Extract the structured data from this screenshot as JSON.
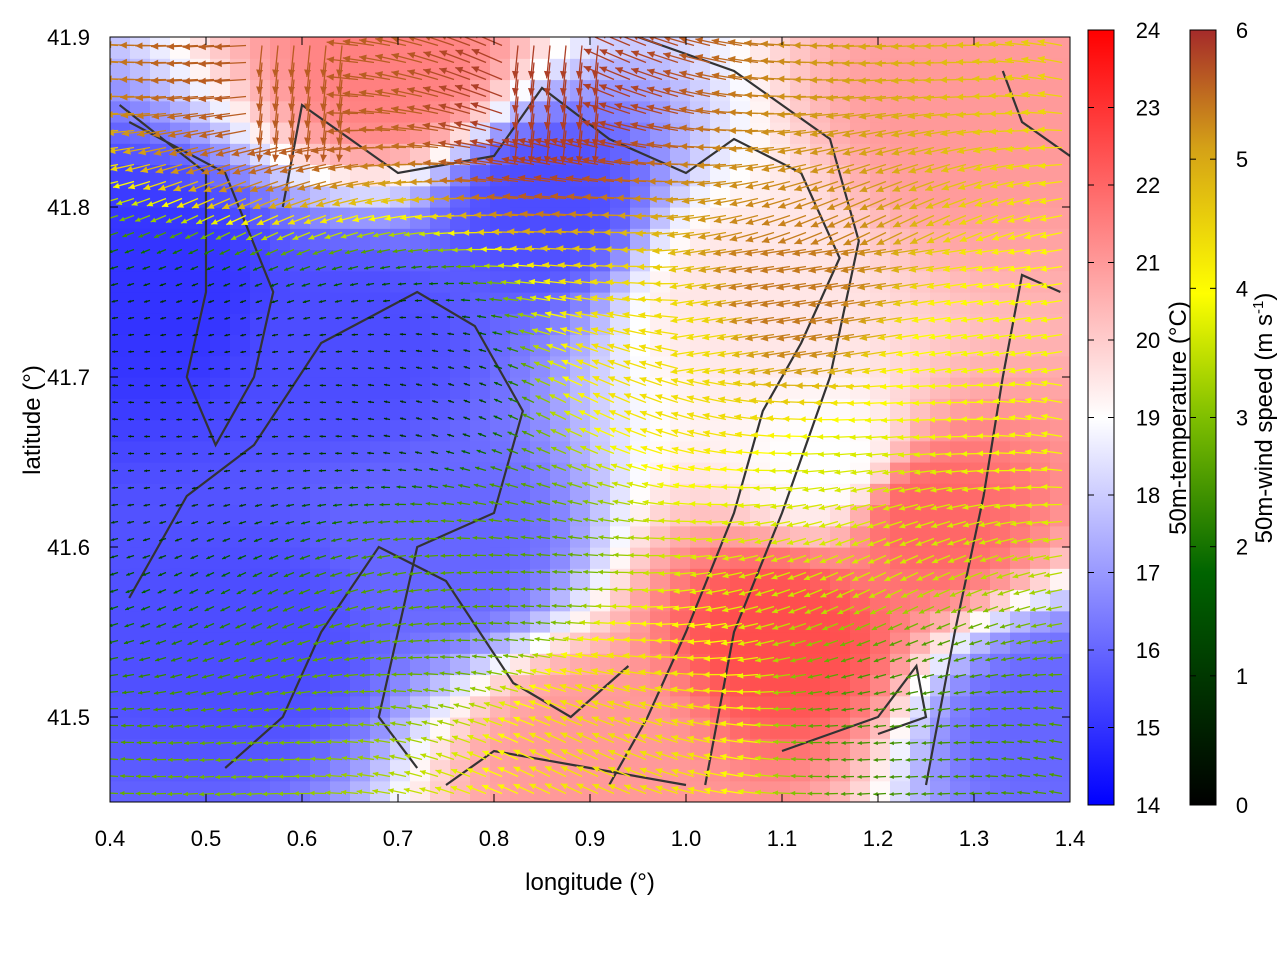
{
  "chart_data": {
    "type": "heatmap",
    "xlabel": "longitude (°)",
    "ylabel": "latitude (°)",
    "xlim": [
      0.4,
      1.4
    ],
    "ylim": [
      41.45,
      41.9
    ],
    "x_ticks": [
      "0.4",
      "0.5",
      "0.6",
      "0.7",
      "0.8",
      "0.9",
      "1.0",
      "1.1",
      "1.2",
      "1.3",
      "1.4"
    ],
    "y_ticks": [
      "41.5",
      "41.6",
      "41.7",
      "41.8",
      "41.9"
    ],
    "grid": false,
    "temperature_colorbar": {
      "label": "50m-temperature (°C)",
      "range": [
        14,
        24
      ],
      "ticks": [
        "14",
        "15",
        "16",
        "17",
        "18",
        "19",
        "20",
        "21",
        "22",
        "23",
        "24"
      ],
      "colors": [
        "#0000ff",
        "#ffffff",
        "#ff0000"
      ]
    },
    "wind_colorbar": {
      "label_main": "50m-wind speed (m s",
      "label_sup": "-1",
      "label_end": ")",
      "range": [
        0,
        6
      ],
      "ticks": [
        "0",
        "1",
        "2",
        "3",
        "4",
        "5",
        "6"
      ],
      "colors": [
        "#000000",
        "#006400",
        "#7fbf00",
        "#ffff00",
        "#d4a017",
        "#a52a2a"
      ]
    },
    "temperature_regions": [
      {
        "lon": 0.45,
        "lat": 41.75,
        "temp": 15.0
      },
      {
        "lon": 0.65,
        "lat": 41.72,
        "temp": 15.5
      },
      {
        "lon": 0.75,
        "lat": 41.6,
        "temp": 16.0
      },
      {
        "lon": 0.55,
        "lat": 41.55,
        "temp": 15.5
      },
      {
        "lon": 0.85,
        "lat": 41.8,
        "temp": 15.5
      },
      {
        "lon": 0.7,
        "lat": 41.88,
        "temp": 21.5
      },
      {
        "lon": 1.05,
        "lat": 41.75,
        "temp": 19.5
      },
      {
        "lon": 1.15,
        "lat": 41.65,
        "temp": 19.0
      },
      {
        "lon": 1.1,
        "lat": 41.55,
        "temp": 22.5
      },
      {
        "lon": 1.25,
        "lat": 41.62,
        "temp": 22.0
      },
      {
        "lon": 0.9,
        "lat": 41.48,
        "temp": 21.0
      },
      {
        "lon": 1.3,
        "lat": 41.85,
        "temp": 21.0
      },
      {
        "lon": 1.38,
        "lat": 41.5,
        "temp": 16.0
      }
    ],
    "wind_regions": [
      {
        "lon": 0.5,
        "lat": 41.7,
        "speed": 0.5
      },
      {
        "lon": 0.7,
        "lat": 41.7,
        "speed": 0.6
      },
      {
        "lon": 0.8,
        "lat": 41.58,
        "speed": 2.0
      },
      {
        "lon": 1.0,
        "lat": 41.72,
        "speed": 4.0
      },
      {
        "lon": 1.12,
        "lat": 41.75,
        "speed": 5.2
      },
      {
        "lon": 1.2,
        "lat": 41.62,
        "speed": 3.2
      },
      {
        "lon": 0.95,
        "lat": 41.5,
        "speed": 4.0
      },
      {
        "lon": 0.6,
        "lat": 41.87,
        "speed": 5.5
      },
      {
        "lon": 0.87,
        "lat": 41.86,
        "speed": 5.8
      },
      {
        "lon": 1.25,
        "lat": 41.5,
        "speed": 1.8
      },
      {
        "lon": 1.32,
        "lat": 41.7,
        "speed": 3.5
      }
    ],
    "contours": [
      [
        [
          0.41,
          41.86
        ],
        [
          0.5,
          41.82
        ],
        [
          0.5,
          41.75
        ],
        [
          0.48,
          41.7
        ],
        [
          0.51,
          41.66
        ],
        [
          0.55,
          41.7
        ],
        [
          0.57,
          41.75
        ],
        [
          0.52,
          41.82
        ],
        [
          0.42,
          41.85
        ]
      ],
      [
        [
          0.58,
          41.8
        ],
        [
          0.6,
          41.86
        ],
        [
          0.65,
          41.84
        ],
        [
          0.7,
          41.82
        ],
        [
          0.8,
          41.83
        ],
        [
          0.85,
          41.87
        ],
        [
          0.92,
          41.84
        ],
        [
          1.0,
          41.82
        ],
        [
          1.05,
          41.84
        ],
        [
          1.12,
          41.82
        ],
        [
          1.16,
          41.77
        ],
        [
          1.12,
          41.72
        ],
        [
          1.08,
          41.68
        ],
        [
          1.05,
          41.62
        ],
        [
          1.0,
          41.55
        ],
        [
          0.96,
          41.5
        ],
        [
          0.92,
          41.46
        ]
      ],
      [
        [
          0.42,
          41.57
        ],
        [
          0.48,
          41.63
        ],
        [
          0.55,
          41.66
        ],
        [
          0.62,
          41.72
        ],
        [
          0.72,
          41.75
        ],
        [
          0.78,
          41.73
        ],
        [
          0.83,
          41.68
        ],
        [
          0.8,
          41.62
        ],
        [
          0.72,
          41.6
        ],
        [
          0.7,
          41.55
        ],
        [
          0.68,
          41.5
        ],
        [
          0.72,
          41.47
        ]
      ],
      [
        [
          1.02,
          41.46
        ],
        [
          1.05,
          41.55
        ],
        [
          1.1,
          41.62
        ],
        [
          1.15,
          41.7
        ],
        [
          1.18,
          41.78
        ],
        [
          1.15,
          41.84
        ],
        [
          1.05,
          41.88
        ],
        [
          0.95,
          41.9
        ]
      ],
      [
        [
          1.25,
          41.46
        ],
        [
          1.28,
          41.55
        ],
        [
          1.31,
          41.63
        ],
        [
          1.33,
          41.7
        ],
        [
          1.35,
          41.76
        ],
        [
          1.39,
          41.75
        ]
      ],
      [
        [
          0.52,
          41.47
        ],
        [
          0.58,
          41.5
        ],
        [
          0.62,
          41.55
        ],
        [
          0.68,
          41.6
        ],
        [
          0.75,
          41.58
        ],
        [
          0.82,
          41.52
        ],
        [
          0.88,
          41.5
        ],
        [
          0.94,
          41.53
        ]
      ],
      [
        [
          1.1,
          41.48
        ],
        [
          1.2,
          41.5
        ],
        [
          1.24,
          41.53
        ],
        [
          1.25,
          41.5
        ],
        [
          1.2,
          41.49
        ]
      ],
      [
        [
          1.33,
          41.88
        ],
        [
          1.35,
          41.85
        ],
        [
          1.4,
          41.83
        ]
      ],
      [
        [
          0.75,
          41.46
        ],
        [
          0.8,
          41.48
        ],
        [
          0.9,
          41.47
        ],
        [
          1.0,
          41.46
        ]
      ]
    ]
  }
}
